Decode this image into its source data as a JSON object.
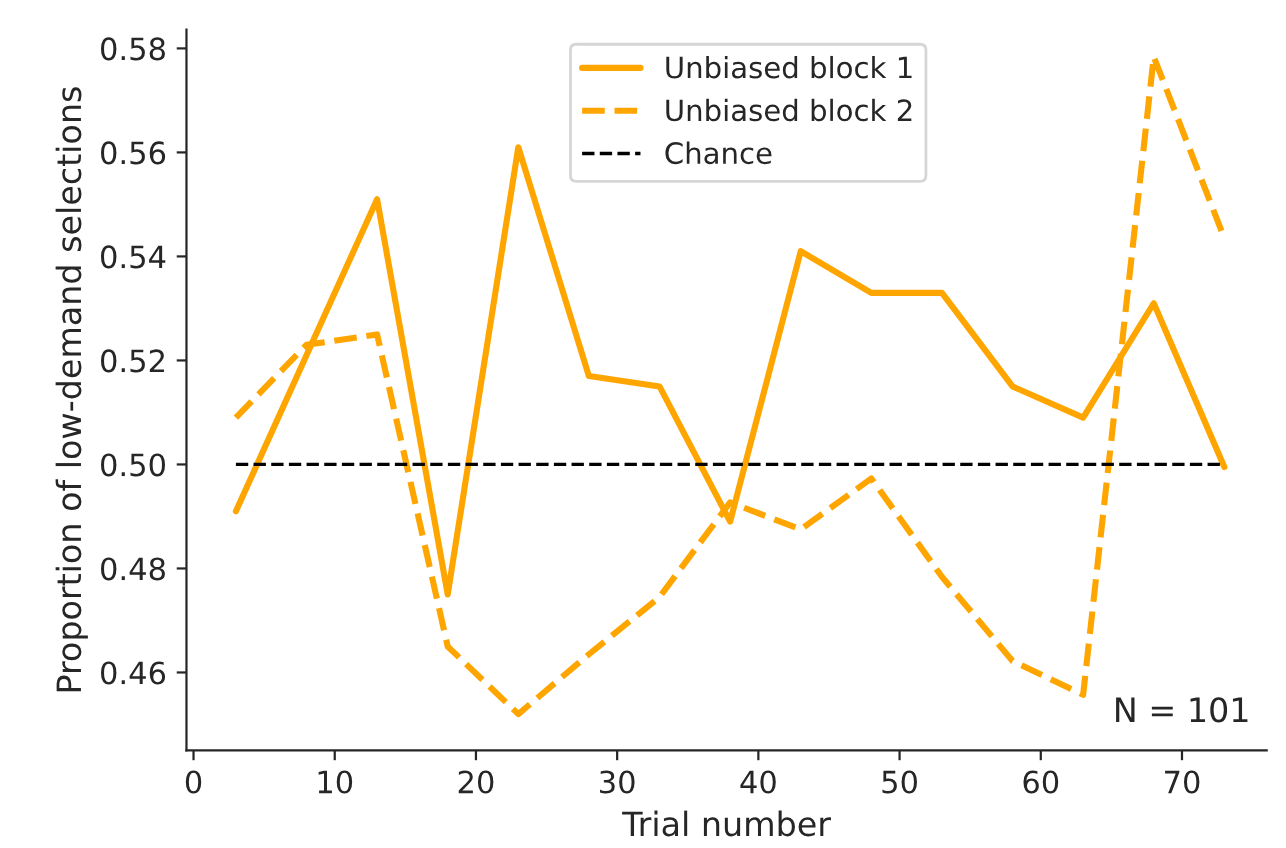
{
  "chart_data": {
    "type": "line",
    "xlabel": "Trial number",
    "ylabel": "Proportion of low-demand selections",
    "x": [
      3,
      8,
      13,
      18,
      23,
      28,
      33,
      38,
      43,
      48,
      53,
      58,
      63,
      68,
      73
    ],
    "series": [
      {
        "name": "Unbiased block 1",
        "color": "#ffa500",
        "line_style": "solid",
        "values": [
          0.491,
          0.521,
          0.551,
          0.475,
          0.561,
          0.517,
          0.515,
          0.489,
          0.541,
          0.533,
          0.533,
          0.515,
          0.509,
          0.531,
          0.4995
        ]
      },
      {
        "name": "Unbiased block 2",
        "color": "#ffa500",
        "line_style": "dashed",
        "values": [
          0.509,
          0.523,
          0.525,
          0.465,
          0.452,
          0.4635,
          0.4745,
          0.4927,
          0.4875,
          0.4973,
          0.4784,
          0.4622,
          0.4557,
          0.5784,
          0.5435
        ]
      }
    ],
    "ref_lines": [
      {
        "axis": "y",
        "value": 0.5,
        "label": "Chance",
        "color": "#000000",
        "line_style": "dashed"
      }
    ],
    "annotations": [
      "N = 101"
    ],
    "xlim": [
      -0.5,
      76
    ],
    "ylim": [
      0.445,
      0.5836
    ],
    "xticks": [
      0,
      10,
      20,
      30,
      40,
      50,
      60,
      70
    ],
    "yticks": [
      {
        "value": 0.46,
        "label": "0.46"
      },
      {
        "value": 0.48,
        "label": "0.48"
      },
      {
        "value": 0.5,
        "label": "0.50"
      },
      {
        "value": 0.52,
        "label": "0.52"
      },
      {
        "value": 0.54,
        "label": "0.54"
      },
      {
        "value": 0.56,
        "label": "0.56"
      },
      {
        "value": 0.58,
        "label": "0.58"
      }
    ],
    "legend": "top",
    "grid": false,
    "marker": "none"
  }
}
